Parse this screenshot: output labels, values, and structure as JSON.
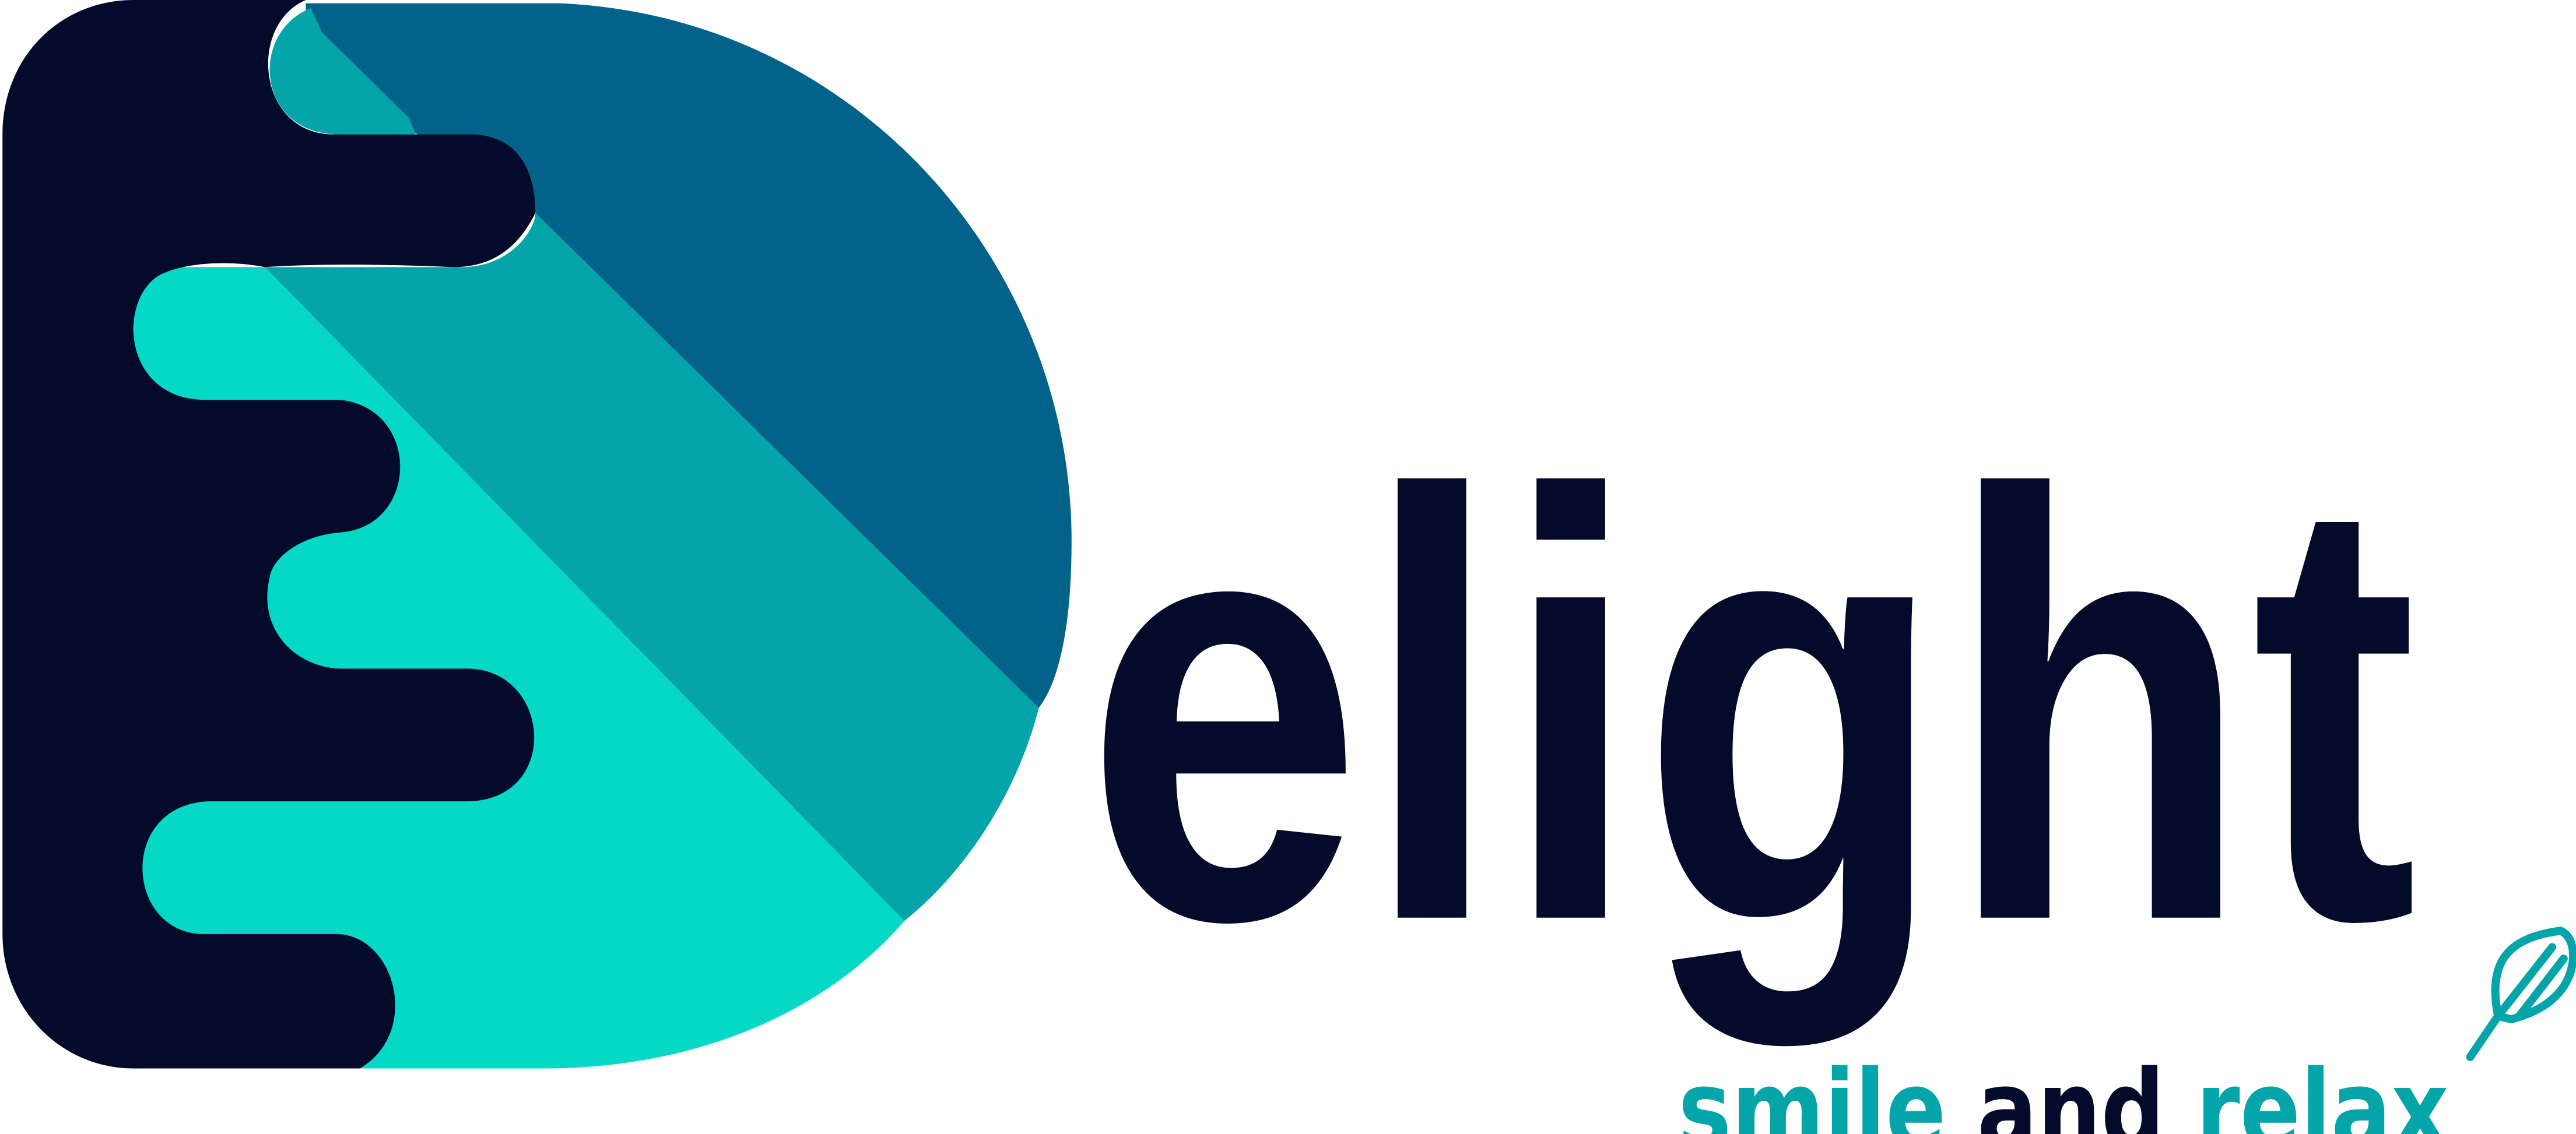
{
  "logo": {
    "wordmark": "elight",
    "tagline": [
      "smile",
      "and",
      "relax"
    ]
  }
}
